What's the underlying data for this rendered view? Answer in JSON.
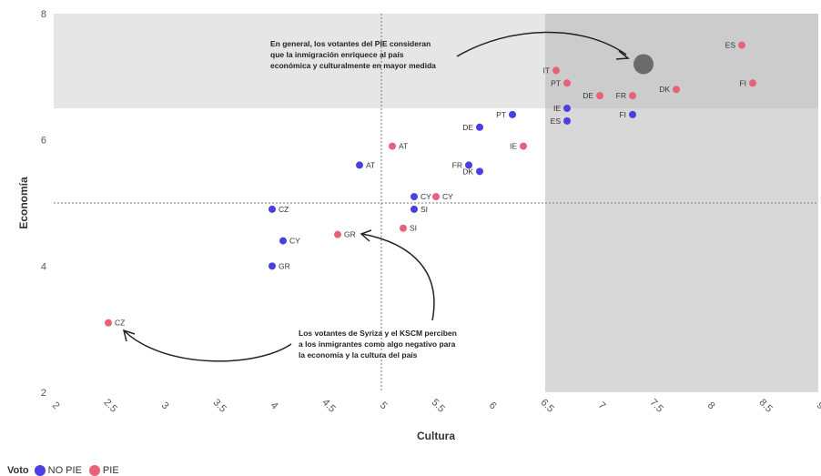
{
  "chart_data": {
    "type": "scatter",
    "xlabel": "Cultura",
    "ylabel": "Economía",
    "xlim": [
      2,
      9
    ],
    "ylim": [
      2,
      8
    ],
    "x_ticks": [
      "2",
      "2.5",
      "3",
      "3.5",
      "4",
      "4.5",
      "5",
      "5.5",
      "6",
      "6.5",
      "7",
      "7.5",
      "8",
      "8.5",
      "9"
    ],
    "y_ticks": [
      "2",
      "4",
      "6",
      "8"
    ],
    "reference_lines": {
      "x": 5,
      "y": 5
    },
    "shaded_regions": [
      {
        "x": [
          2,
          9
        ],
        "y": [
          6.5,
          8
        ],
        "color": "#e6e6e6"
      },
      {
        "x": [
          6.5,
          9
        ],
        "y": [
          2,
          8
        ],
        "color": "#d8d8d8"
      },
      {
        "x": [
          6.5,
          9
        ],
        "y": [
          6.5,
          8
        ],
        "color": "#cccccc"
      }
    ],
    "highlight_point": {
      "x": 7.4,
      "y": 7.2,
      "color": "#6b6b6b"
    },
    "series": [
      {
        "name": "NO PIE",
        "color": "#4a3fe0",
        "points": [
          {
            "label": "PT",
            "x": 6.2,
            "y": 6.4
          },
          {
            "label": "DE",
            "x": 5.9,
            "y": 6.2
          },
          {
            "label": "IE",
            "x": 6.7,
            "y": 6.5
          },
          {
            "label": "ES",
            "x": 6.7,
            "y": 6.3
          },
          {
            "label": "FI",
            "x": 7.3,
            "y": 6.4
          },
          {
            "label": "AT",
            "x": 4.8,
            "y": 5.6
          },
          {
            "label": "FR",
            "x": 5.8,
            "y": 5.6
          },
          {
            "label": "DK",
            "x": 5.9,
            "y": 5.5
          },
          {
            "label": "CY",
            "x": 5.3,
            "y": 5.1
          },
          {
            "label": "SI",
            "x": 5.3,
            "y": 4.9
          },
          {
            "label": "CZ",
            "x": 4.0,
            "y": 4.9
          },
          {
            "label": "CY",
            "x": 4.1,
            "y": 4.4
          },
          {
            "label": "GR",
            "x": 4.0,
            "y": 4.0
          }
        ]
      },
      {
        "name": "PIE",
        "color": "#e8607a",
        "points": [
          {
            "label": "ES",
            "x": 8.3,
            "y": 7.5
          },
          {
            "label": "IT",
            "x": 6.6,
            "y": 7.1
          },
          {
            "label": "PT",
            "x": 6.7,
            "y": 6.9
          },
          {
            "label": "FI",
            "x": 8.4,
            "y": 6.9
          },
          {
            "label": "DE",
            "x": 7.0,
            "y": 6.7
          },
          {
            "label": "FR",
            "x": 7.3,
            "y": 6.7
          },
          {
            "label": "DK",
            "x": 7.7,
            "y": 6.8
          },
          {
            "label": "AT",
            "x": 5.1,
            "y": 5.9
          },
          {
            "label": "IE",
            "x": 6.3,
            "y": 5.9
          },
          {
            "label": "CY",
            "x": 5.5,
            "y": 5.1
          },
          {
            "label": "SI",
            "x": 5.2,
            "y": 4.6
          },
          {
            "label": "GR",
            "x": 4.6,
            "y": 4.5
          },
          {
            "label": "CZ",
            "x": 2.5,
            "y": 3.1
          }
        ]
      }
    ],
    "annotations": [
      {
        "lines": [
          "En general, los votantes del PIE consideran",
          "que la inmigración enriquece al país",
          "económica y culturalmente en mayor medida"
        ]
      },
      {
        "lines": [
          "Los votantes de Syriza y el KSCM perciben",
          "a los inmigrantes como algo negativo para",
          "la economía y la cultura del país"
        ]
      }
    ],
    "legend": {
      "title": "Voto",
      "position": "bottom-left"
    }
  }
}
